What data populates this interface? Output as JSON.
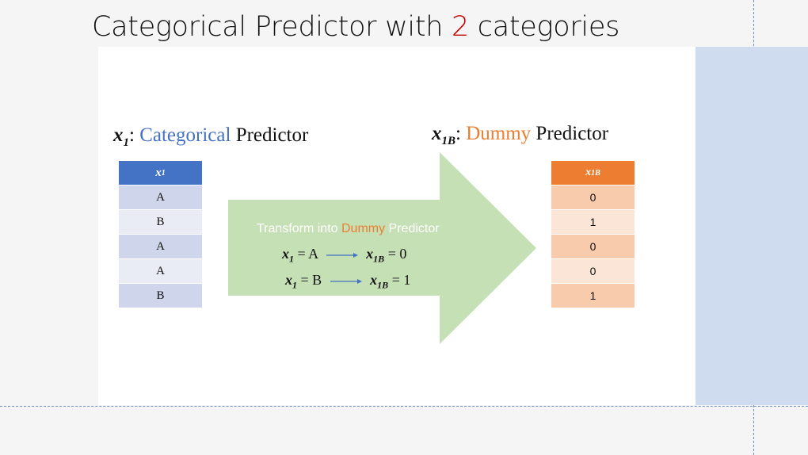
{
  "slide": {
    "title_prefix": "Categorical Predictor with ",
    "title_number": "2",
    "title_suffix": " categories"
  },
  "left_heading": {
    "var_base": "x",
    "var_sub": "1",
    "colon": ": ",
    "highlight": "Categorical",
    "rest": " Predictor"
  },
  "right_heading": {
    "var_base": "x",
    "var_sub": "1B",
    "colon": ": ",
    "highlight": "Dummy",
    "rest": " Predictor"
  },
  "left_table": {
    "header_base": "x",
    "header_sub": "1",
    "rows": [
      "A",
      "B",
      "A",
      "A",
      "B"
    ]
  },
  "right_table": {
    "header_base": "x",
    "header_sub": "1B",
    "rows": [
      "0",
      "1",
      "0",
      "0",
      "1"
    ]
  },
  "arrow": {
    "caption_prefix": "Transform into ",
    "caption_highlight": "Dummy",
    "caption_suffix": " Predictor",
    "rules": [
      {
        "lhs_base": "x",
        "lhs_sub": "1",
        "lhs_value": " = A",
        "rhs_base": "x",
        "rhs_sub": "1B",
        "rhs_value": " = 0"
      },
      {
        "lhs_base": "x",
        "lhs_sub": "1",
        "lhs_value": " = B",
        "rhs_base": "x",
        "rhs_sub": "1B",
        "rhs_value": " = 1"
      }
    ]
  },
  "colors": {
    "blue": "#4472c4",
    "orange": "#ed7d31",
    "arrow_fill": "#c5e0b4",
    "title_number": "#c00000"
  }
}
